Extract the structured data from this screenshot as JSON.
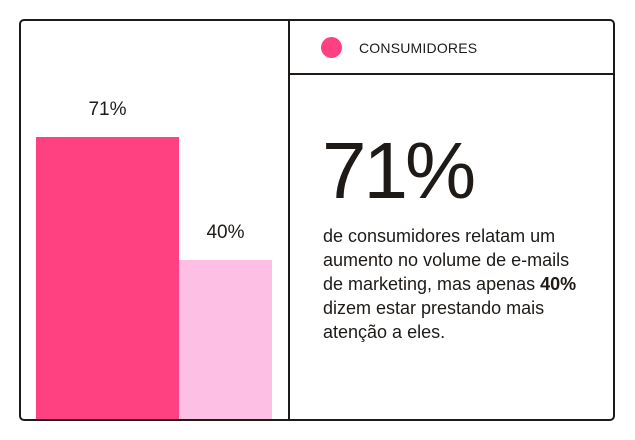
{
  "chart_data": {
    "type": "bar",
    "categories": [
      "",
      ""
    ],
    "series": [
      {
        "name": "CONSUMIDORES",
        "values": [
          71,
          40
        ]
      }
    ],
    "data_labels": [
      "71%",
      "40%"
    ],
    "colors": [
      "#ff4081",
      "#fdc0e4"
    ],
    "ylim": [
      0,
      100
    ],
    "grid": false,
    "legend": "top-right"
  },
  "legend": {
    "label": "CONSUMIDORES",
    "color": "#ff4081"
  },
  "highlight": {
    "value": "71%",
    "text_before": "de consumidores relatam um aumento no volume de e-mails de marketing, mas apenas ",
    "bold": "40%",
    "text_after": " dizem estar prestando mais atenção a eles."
  }
}
